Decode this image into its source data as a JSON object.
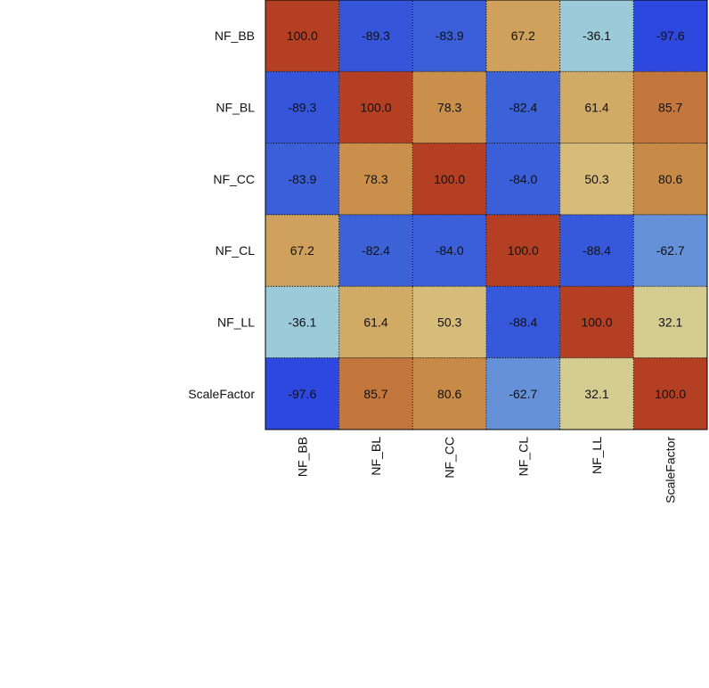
{
  "chart_data": {
    "type": "heatmap",
    "variables": [
      "NF_BB",
      "NF_BL",
      "NF_CC",
      "NF_CL",
      "NF_LL",
      "ScaleFactor"
    ],
    "x_categories": [
      "NF_BB",
      "NF_BL",
      "NF_CC",
      "NF_CL",
      "NF_LL",
      "ScaleFactor"
    ],
    "y_categories": [
      "NF_BB",
      "NF_BL",
      "NF_CC",
      "NF_CL",
      "NF_LL",
      "ScaleFactor"
    ],
    "values": [
      [
        100.0,
        -89.3,
        -83.9,
        67.2,
        -36.1,
        -97.6
      ],
      [
        -89.3,
        100.0,
        78.3,
        -82.4,
        61.4,
        85.7
      ],
      [
        -83.9,
        78.3,
        100.0,
        -84.0,
        50.3,
        80.6
      ],
      [
        67.2,
        -82.4,
        -84.0,
        100.0,
        -88.4,
        -62.7
      ],
      [
        -36.1,
        61.4,
        50.3,
        -88.4,
        100.0,
        32.1
      ],
      [
        -97.6,
        85.7,
        80.6,
        -62.7,
        32.1,
        100.0
      ]
    ],
    "value_labels": [
      [
        "100.0",
        "-89.3",
        "-83.9",
        "67.2",
        "-36.1",
        "-97.6"
      ],
      [
        "-89.3",
        "100.0",
        "78.3",
        "-82.4",
        "61.4",
        "85.7"
      ],
      [
        "-83.9",
        "78.3",
        "100.0",
        "-84.0",
        "50.3",
        "80.6"
      ],
      [
        "67.2",
        "-82.4",
        "-84.0",
        "100.0",
        "-88.4",
        "-62.7"
      ],
      [
        "-36.1",
        "61.4",
        "50.3",
        "-88.4",
        "100.0",
        "32.1"
      ],
      [
        "-97.6",
        "85.7",
        "80.6",
        "-62.7",
        "32.1",
        "100.0"
      ]
    ],
    "value_range": [
      -100,
      100
    ],
    "colors": {
      "negative_strong": "#2b44e0",
      "negative_mid": "#3e66d6",
      "negative_weak": "#98cadd",
      "positive_weak": "#dbcc88",
      "positive_mid": "#c98d48",
      "positive_strong": "#b43f22",
      "cell_border": "#111111",
      "frame": "#000000",
      "text": "#111111"
    },
    "title": "",
    "xlabel": "",
    "ylabel": "",
    "grid": true,
    "legend": "none"
  }
}
